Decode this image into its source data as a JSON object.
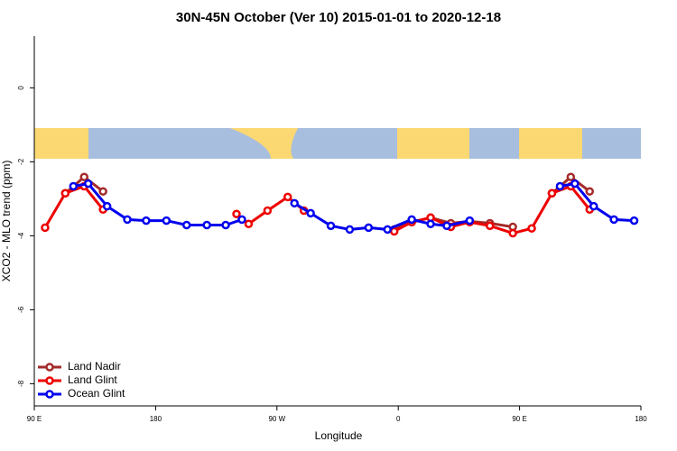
{
  "chart_data": {
    "type": "line",
    "title": "30N-45N October (Ver 10)   2015-01-01 to 2020-12-18",
    "x_label": "Longitude",
    "y_label": "XCO2 - MLO trend (ppm)",
    "xlim": [
      90,
      540
    ],
    "ylim": [
      -8.6,
      1.4
    ],
    "xticks": [
      {
        "value": 90,
        "label": "90 E"
      },
      {
        "value": 180,
        "label": "180"
      },
      {
        "value": 270,
        "label": "90 W"
      },
      {
        "value": 360,
        "label": "0"
      },
      {
        "value": 450,
        "label": "90 E"
      },
      {
        "value": 540,
        "label": "180"
      }
    ],
    "yticks": [
      0,
      -2,
      -4,
      -6,
      -8
    ],
    "legend": "bottom-left",
    "series": [
      {
        "name": "Land Nadir",
        "color": "#a52a2a",
        "x": [
          113,
          127,
          141,
          null,
          357,
          370,
          384,
          399,
          413,
          428,
          445,
          null,
          474,
          488,
          502
        ],
        "values": [
          -2.85,
          -2.41,
          -2.8,
          null,
          -3.83,
          -3.63,
          -3.51,
          -3.66,
          -3.61,
          -3.66,
          -3.76,
          null,
          -2.85,
          -2.41,
          -2.8
        ]
      },
      {
        "name": "Land Glint",
        "color": "#ee0000",
        "x": [
          98,
          113,
          127,
          141,
          null,
          240,
          249,
          263,
          278,
          290,
          null,
          357,
          370,
          384,
          399,
          413,
          428,
          445,
          459,
          474,
          488,
          502
        ],
        "values": [
          -3.78,
          -2.85,
          -2.66,
          -3.29,
          null,
          -3.41,
          -3.68,
          -3.32,
          -2.95,
          -3.32,
          null,
          -3.88,
          -3.63,
          -3.51,
          -3.76,
          -3.63,
          -3.73,
          -3.93,
          -3.8,
          -2.85,
          -2.66,
          -3.29
        ]
      },
      {
        "name": "Ocean Glint",
        "color": "#0000ee",
        "x": [
          119,
          130,
          144,
          159,
          173,
          188,
          203,
          218,
          232,
          244,
          null,
          283,
          295,
          310,
          324,
          338,
          352,
          370,
          384,
          396,
          413,
          null,
          480,
          491,
          505,
          520,
          535
        ],
        "values": [
          -2.66,
          -2.59,
          -3.2,
          -3.56,
          -3.59,
          -3.59,
          -3.71,
          -3.71,
          -3.71,
          -3.56,
          null,
          -3.12,
          -3.39,
          -3.73,
          -3.83,
          -3.78,
          -3.83,
          -3.56,
          -3.68,
          -3.73,
          -3.59,
          null,
          -2.66,
          -2.59,
          -3.2,
          -3.56,
          -3.59
        ]
      }
    ]
  }
}
